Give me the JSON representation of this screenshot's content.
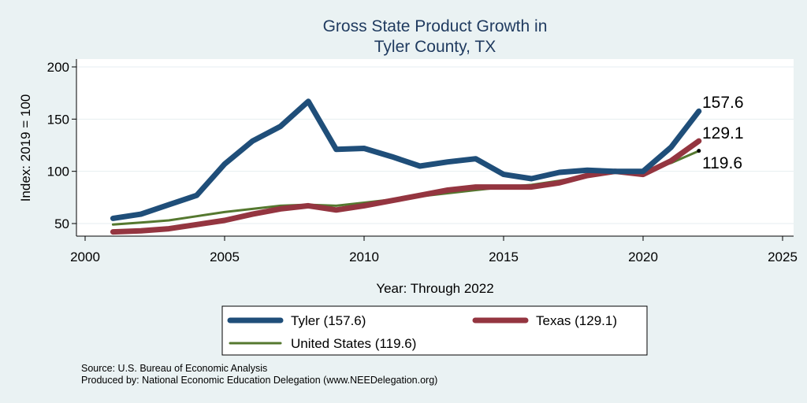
{
  "chart_data": {
    "type": "line",
    "title": [
      "Gross State Product Growth in",
      "Tyler County, TX"
    ],
    "xlabel": "Year: Through 2022",
    "ylabel": "Index: 2019 = 100",
    "xlim": [
      2000,
      2025
    ],
    "ylim": [
      35,
      210
    ],
    "x_ticks": [
      2000,
      2005,
      2010,
      2015,
      2020,
      2025
    ],
    "y_ticks": [
      50,
      100,
      150,
      200
    ],
    "x_tick_labels": [
      "2000",
      "2005",
      "2010",
      "2015",
      "2020",
      "2025"
    ],
    "y_tick_labels": [
      "50",
      "100",
      "150",
      "200"
    ],
    "x": [
      2001,
      2002,
      2003,
      2004,
      2005,
      2006,
      2007,
      2008,
      2009,
      2010,
      2011,
      2012,
      2013,
      2014,
      2015,
      2016,
      2017,
      2018,
      2019,
      2020,
      2021,
      2022
    ],
    "series": [
      {
        "name": "Tyler",
        "legend_label": "Tyler  (157.6)",
        "color": "#1f4e79",
        "values": [
          55,
          59,
          68,
          77,
          107,
          129,
          143,
          167,
          121,
          122,
          114,
          105,
          109,
          112,
          97,
          93,
          99,
          101,
          100,
          100,
          123,
          157.6
        ]
      },
      {
        "name": "Texas",
        "legend_label": "Texas (129.1)",
        "color": "#943540",
        "values": [
          42,
          43,
          45,
          49,
          53,
          59,
          64,
          67,
          63,
          67,
          72,
          77,
          82,
          85,
          85,
          85,
          89,
          96,
          100,
          97,
          110,
          129.1
        ]
      },
      {
        "name": "United States",
        "legend_label": "United States (119.6)",
        "color": "#55782f",
        "values": [
          49,
          51,
          53,
          57,
          61,
          64,
          67,
          68,
          67,
          70,
          73,
          76,
          79,
          82,
          85,
          87,
          91,
          96,
          100,
          100,
          108,
          119.6
        ]
      }
    ],
    "end_labels": [
      "157.6",
      "129.1",
      "119.6"
    ],
    "legend_position": "bottom",
    "grid": true
  },
  "footer": {
    "source": "Source: U.S. Bureau of Economic Analysis",
    "produced_by": "Produced by: National Economic Education Delegation (www.NEEDelegation.org)"
  }
}
